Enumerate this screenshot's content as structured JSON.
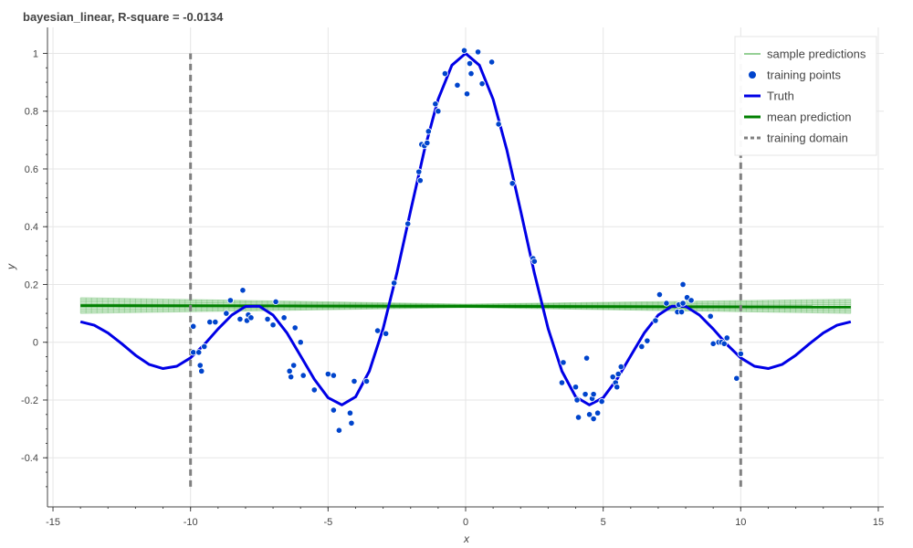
{
  "chart_data": {
    "type": "line",
    "title": "bayesian_linear, R-square = -0.0134",
    "xlabel": "x",
    "ylabel": "y",
    "xlim": [
      -15.2,
      15.2
    ],
    "ylim": [
      -0.57,
      1.09
    ],
    "x_ticks": [
      -15,
      -10,
      -5,
      0,
      5,
      10,
      15
    ],
    "x_tick_labels": [
      "-15",
      "-10",
      "-5",
      "0",
      "5",
      "10",
      "15"
    ],
    "y_ticks": [
      -0.4,
      -0.2,
      0,
      0.2,
      0.4,
      0.6,
      0.8,
      1
    ],
    "y_tick_labels": [
      "-0.4",
      "-0.2",
      "0",
      "0.2",
      "0.4",
      "0.6",
      "0.8",
      "1"
    ],
    "grid": true,
    "legend_position": "top-right",
    "legend": [
      {
        "label": "sample predictions",
        "kind": "thin-line",
        "color": "#2ca02c"
      },
      {
        "label": "training points",
        "kind": "circle",
        "color": "#0044cc"
      },
      {
        "label": "Truth",
        "kind": "thick-line",
        "color": "#0000e6"
      },
      {
        "label": "mean prediction",
        "kind": "thick-line",
        "color": "#008000"
      },
      {
        "label": "training domain",
        "kind": "dashed-line",
        "color": "#808080"
      }
    ],
    "colors": {
      "truth": "#0000e6",
      "mean": "#008000",
      "samples": "#2ca02c",
      "points": "#0044cc",
      "domain": "#808080",
      "grid": "#e6e6e6"
    },
    "truth": {
      "x": [
        -14,
        -13.5,
        -13,
        -12.5,
        -12,
        -11.5,
        -11,
        -10.5,
        -10,
        -9.5,
        -9,
        -8.5,
        -8,
        -7.5,
        -7,
        -6.5,
        -6,
        -5.5,
        -5,
        -4.5,
        -4,
        -3.5,
        -3,
        -2.5,
        -2,
        -1.5,
        -1,
        -0.5,
        0,
        0.5,
        1,
        1.5,
        2,
        2.5,
        3,
        3.5,
        4,
        4.5,
        5,
        5.5,
        6,
        6.5,
        7,
        7.5,
        8,
        8.5,
        9,
        9.5,
        10,
        10.5,
        11,
        11.5,
        12,
        12.5,
        13,
        13.5,
        14
      ],
      "y": [
        0.071,
        0.059,
        0.032,
        -0.005,
        -0.045,
        -0.077,
        -0.091,
        -0.083,
        -0.054,
        -0.008,
        0.046,
        0.094,
        0.124,
        0.125,
        0.094,
        0.033,
        -0.047,
        -0.128,
        -0.192,
        -0.217,
        -0.189,
        -0.1,
        0.047,
        0.239,
        0.455,
        0.665,
        0.841,
        0.959,
        1.0,
        0.959,
        0.841,
        0.665,
        0.455,
        0.239,
        0.047,
        -0.1,
        -0.189,
        -0.217,
        -0.192,
        -0.128,
        -0.047,
        0.033,
        0.094,
        0.125,
        0.124,
        0.094,
        0.046,
        -0.008,
        -0.054,
        -0.083,
        -0.091,
        -0.077,
        -0.045,
        -0.005,
        0.032,
        0.059,
        0.071
      ]
    },
    "mean_prediction": {
      "x": [
        -14,
        14
      ],
      "y": [
        0.127,
        0.122
      ]
    },
    "sample_predictions_band": {
      "x": [
        -14,
        0,
        14
      ],
      "lower": [
        0.1,
        0.12,
        0.1
      ],
      "upper": [
        0.154,
        0.132,
        0.149
      ]
    },
    "training_domain": [
      -10,
      10
    ],
    "training_domain_y": [
      -0.5,
      1.0
    ],
    "training_points": [
      [
        -9.9,
        0.055
      ],
      [
        -9.9,
        -0.035
      ],
      [
        -9.7,
        -0.035
      ],
      [
        -9.65,
        -0.08
      ],
      [
        -9.6,
        -0.1
      ],
      [
        -9.5,
        -0.015
      ],
      [
        -9.3,
        0.07
      ],
      [
        -9.1,
        0.07
      ],
      [
        -8.7,
        0.1
      ],
      [
        -8.55,
        0.145
      ],
      [
        -8.2,
        0.08
      ],
      [
        -8.1,
        0.18
      ],
      [
        -7.95,
        0.075
      ],
      [
        -7.9,
        0.095
      ],
      [
        -7.8,
        0.085
      ],
      [
        -7.2,
        0.08
      ],
      [
        -7.0,
        0.06
      ],
      [
        -6.9,
        0.14
      ],
      [
        -6.6,
        0.085
      ],
      [
        -6.4,
        -0.1
      ],
      [
        -6.35,
        -0.12
      ],
      [
        -6.25,
        -0.08
      ],
      [
        -6.2,
        0.05
      ],
      [
        -6.0,
        0.0
      ],
      [
        -5.9,
        -0.115
      ],
      [
        -5.5,
        -0.165
      ],
      [
        -5.0,
        -0.11
      ],
      [
        -4.8,
        -0.115
      ],
      [
        -4.8,
        -0.235
      ],
      [
        -4.6,
        -0.305
      ],
      [
        -4.2,
        -0.245
      ],
      [
        -4.15,
        -0.28
      ],
      [
        -4.05,
        -0.135
      ],
      [
        -3.6,
        -0.135
      ],
      [
        -3.2,
        0.04
      ],
      [
        -2.9,
        0.03
      ],
      [
        -2.6,
        0.205
      ],
      [
        -2.1,
        0.41
      ],
      [
        -1.7,
        0.59
      ],
      [
        -1.65,
        0.56
      ],
      [
        -1.6,
        0.685
      ],
      [
        -1.5,
        0.68
      ],
      [
        -1.4,
        0.69
      ],
      [
        -1.35,
        0.73
      ],
      [
        -1.1,
        0.825
      ],
      [
        -1.0,
        0.8
      ],
      [
        -0.75,
        0.93
      ],
      [
        -0.3,
        0.89
      ],
      [
        -0.05,
        1.01
      ],
      [
        0.05,
        0.86
      ],
      [
        0.15,
        0.965
      ],
      [
        0.2,
        0.93
      ],
      [
        0.45,
        1.005
      ],
      [
        0.6,
        0.895
      ],
      [
        0.95,
        0.97
      ],
      [
        1.2,
        0.755
      ],
      [
        1.7,
        0.55
      ],
      [
        2.45,
        0.29
      ],
      [
        2.5,
        0.28
      ],
      [
        3.5,
        -0.14
      ],
      [
        3.55,
        -0.07
      ],
      [
        4.0,
        -0.155
      ],
      [
        4.05,
        -0.2
      ],
      [
        4.1,
        -0.26
      ],
      [
        4.35,
        -0.18
      ],
      [
        4.4,
        -0.055
      ],
      [
        4.5,
        -0.25
      ],
      [
        4.6,
        -0.195
      ],
      [
        4.65,
        -0.18
      ],
      [
        4.65,
        -0.265
      ],
      [
        4.8,
        -0.245
      ],
      [
        4.95,
        -0.205
      ],
      [
        5.35,
        -0.12
      ],
      [
        5.45,
        -0.14
      ],
      [
        5.5,
        -0.155
      ],
      [
        5.55,
        -0.11
      ],
      [
        5.65,
        -0.085
      ],
      [
        6.4,
        -0.015
      ],
      [
        6.6,
        0.005
      ],
      [
        6.9,
        0.075
      ],
      [
        7.05,
        0.165
      ],
      [
        7.3,
        0.135
      ],
      [
        7.7,
        0.105
      ],
      [
        7.75,
        0.13
      ],
      [
        7.85,
        0.105
      ],
      [
        7.9,
        0.135
      ],
      [
        7.9,
        0.2
      ],
      [
        8.05,
        0.155
      ],
      [
        8.2,
        0.145
      ],
      [
        8.9,
        0.09
      ],
      [
        9.0,
        -0.005
      ],
      [
        9.2,
        0.0
      ],
      [
        9.3,
        0.0
      ],
      [
        9.4,
        -0.005
      ],
      [
        9.5,
        0.015
      ],
      [
        9.85,
        -0.125
      ],
      [
        10.0,
        -0.04
      ]
    ]
  }
}
